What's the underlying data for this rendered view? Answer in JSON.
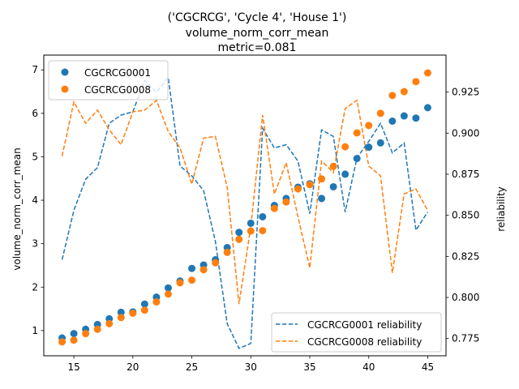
{
  "chart_data": {
    "type": "scatter",
    "title_lines": [
      "('CGCRCG', 'Cycle 4', 'House 1')",
      "volume_norm_corr_mean",
      "metric=0.081"
    ],
    "xlabel": "",
    "ylabel": "volume_norm_corr_mean",
    "y2label": "reliability",
    "xlim": [
      12.45,
      46.55
    ],
    "ylim": [
      0.42,
      7.34
    ],
    "y2lim": [
      0.7645,
      0.9475
    ],
    "xticks": [
      15,
      20,
      25,
      30,
      35,
      40,
      45
    ],
    "yticks": [
      1,
      2,
      3,
      4,
      5,
      6,
      7
    ],
    "y2ticks": [
      0.775,
      0.8,
      0.825,
      0.85,
      0.875,
      0.9,
      0.925
    ],
    "grid": false,
    "legend_primary_location": "upper left",
    "legend_secondary_location": "lower right",
    "colors": {
      "blue": "#1f77b4",
      "orange": "#ff7f0e"
    },
    "x": [
      14,
      15,
      16,
      17,
      18,
      19,
      20,
      21,
      22,
      23,
      24,
      25,
      26,
      27,
      28,
      29,
      30,
      31,
      32,
      33,
      34,
      35,
      36,
      37,
      38,
      39,
      40,
      41,
      42,
      43,
      44,
      45
    ],
    "series": [
      {
        "name": "CGCRCG0001",
        "marker": "circle",
        "color": "#1f77b4",
        "values": [
          0.83,
          0.93,
          1.03,
          1.14,
          1.27,
          1.42,
          1.43,
          1.61,
          1.77,
          1.98,
          2.14,
          2.43,
          2.51,
          2.63,
          2.91,
          3.26,
          3.47,
          3.62,
          3.88,
          4.04,
          4.3,
          4.38,
          4.04,
          4.31,
          4.6,
          4.96,
          5.22,
          5.32,
          5.82,
          5.94,
          5.89,
          6.13
        ]
      },
      {
        "name": "CGCRCG0008",
        "marker": "circle",
        "color": "#ff7f0e",
        "values": [
          0.74,
          0.78,
          0.93,
          1.03,
          1.16,
          1.3,
          1.4,
          1.47,
          1.66,
          1.84,
          2.1,
          2.16,
          2.4,
          2.56,
          2.8,
          3.1,
          3.29,
          3.3,
          3.81,
          3.96,
          4.26,
          4.36,
          4.49,
          4.78,
          5.23,
          5.55,
          5.72,
          6.0,
          6.41,
          6.5,
          6.73,
          6.93
        ]
      }
    ],
    "secondary_series": [
      {
        "name": "CGCRCG0001 reliability",
        "style": "dashed",
        "color": "#1f77b4",
        "values": [
          0.823,
          0.853,
          0.872,
          0.879,
          0.906,
          0.911,
          0.913,
          0.932,
          0.925,
          0.934,
          0.88,
          0.874,
          0.865,
          0.834,
          0.784,
          0.769,
          0.772,
          0.903,
          0.891,
          0.893,
          0.883,
          0.851,
          0.902,
          0.898,
          0.852,
          0.885,
          0.895,
          0.906,
          0.888,
          0.894,
          0.841,
          0.852
        ]
      },
      {
        "name": "CGCRCG0008 reliability",
        "style": "dashed",
        "color": "#ff7f0e",
        "values": [
          0.886,
          0.919,
          0.906,
          0.914,
          0.902,
          0.893,
          0.913,
          0.914,
          0.92,
          0.901,
          0.891,
          0.869,
          0.897,
          0.898,
          0.867,
          0.796,
          0.843,
          0.911,
          0.863,
          0.882,
          0.849,
          0.818,
          0.883,
          0.876,
          0.915,
          0.92,
          0.88,
          0.874,
          0.815,
          0.863,
          0.866,
          0.853
        ]
      }
    ]
  }
}
